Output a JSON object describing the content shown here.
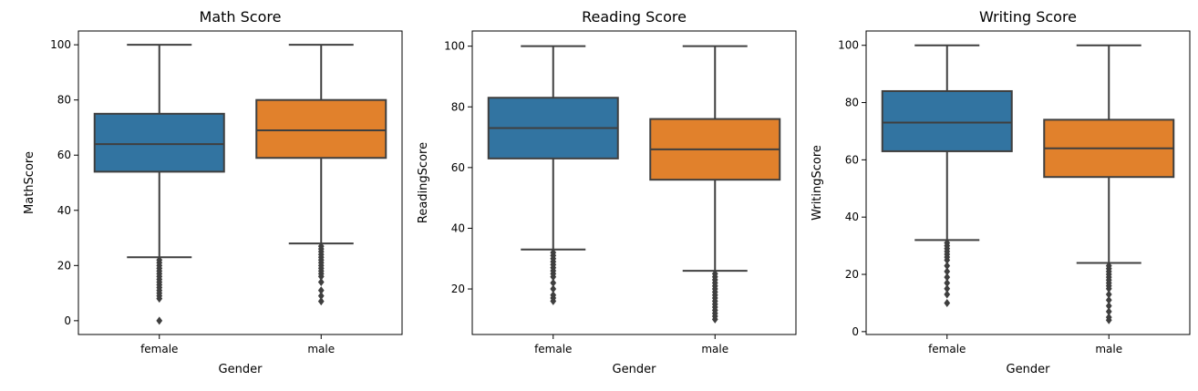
{
  "colors": {
    "female": "#3274a1",
    "male": "#e1812c",
    "line": "#3f3f3f",
    "frame": "#000000"
  },
  "chart_data": [
    {
      "type": "box",
      "title": "Math Score",
      "xlabel": "Gender",
      "ylabel": "MathScore",
      "categories": [
        "female",
        "male"
      ],
      "ylim": [
        -5,
        105
      ],
      "yticks": [
        0,
        20,
        40,
        60,
        80,
        100
      ],
      "boxes": [
        {
          "name": "female",
          "whisker_low": 23,
          "q1": 54,
          "median": 64,
          "q3": 75,
          "whisker_high": 100,
          "outliers": [
            0,
            8,
            9,
            10,
            11,
            12,
            13,
            14,
            15,
            16,
            17,
            18,
            19,
            20,
            21,
            22
          ]
        },
        {
          "name": "male",
          "whisker_low": 28,
          "q1": 59,
          "median": 69,
          "q3": 80,
          "whisker_high": 100,
          "outliers": [
            7,
            9,
            11,
            14,
            16,
            17,
            18,
            19,
            20,
            21,
            22,
            23,
            24,
            25,
            26,
            27
          ]
        }
      ]
    },
    {
      "type": "box",
      "title": "Reading Score",
      "xlabel": "Gender",
      "ylabel": "ReadingScore",
      "categories": [
        "female",
        "male"
      ],
      "ylim": [
        5,
        105
      ],
      "yticks": [
        20,
        40,
        60,
        80,
        100
      ],
      "boxes": [
        {
          "name": "female",
          "whisker_low": 33,
          "q1": 63,
          "median": 73,
          "q3": 83,
          "whisker_high": 100,
          "outliers": [
            16,
            17,
            18,
            20,
            22,
            24,
            25,
            26,
            27,
            28,
            29,
            30,
            31,
            32
          ]
        },
        {
          "name": "male",
          "whisker_low": 26,
          "q1": 56,
          "median": 66,
          "q3": 76,
          "whisker_high": 100,
          "outliers": [
            10,
            11,
            12,
            13,
            14,
            15,
            16,
            17,
            18,
            19,
            20,
            21,
            22,
            23,
            24,
            25
          ]
        }
      ]
    },
    {
      "type": "box",
      "title": "Writing Score",
      "xlabel": "Gender",
      "ylabel": "WritingScore",
      "categories": [
        "female",
        "male"
      ],
      "ylim": [
        -1,
        105
      ],
      "yticks": [
        0,
        20,
        40,
        60,
        80,
        100
      ],
      "boxes": [
        {
          "name": "female",
          "whisker_low": 32,
          "q1": 63,
          "median": 73,
          "q3": 84,
          "whisker_high": 100,
          "outliers": [
            10,
            13,
            15,
            17,
            19,
            21,
            23,
            25,
            26,
            27,
            28,
            29,
            30,
            31
          ]
        },
        {
          "name": "male",
          "whisker_low": 24,
          "q1": 54,
          "median": 64,
          "q3": 74,
          "whisker_high": 100,
          "outliers": [
            4,
            5,
            7,
            9,
            11,
            13,
            15,
            16,
            17,
            18,
            19,
            20,
            21,
            22,
            23
          ]
        }
      ]
    }
  ]
}
